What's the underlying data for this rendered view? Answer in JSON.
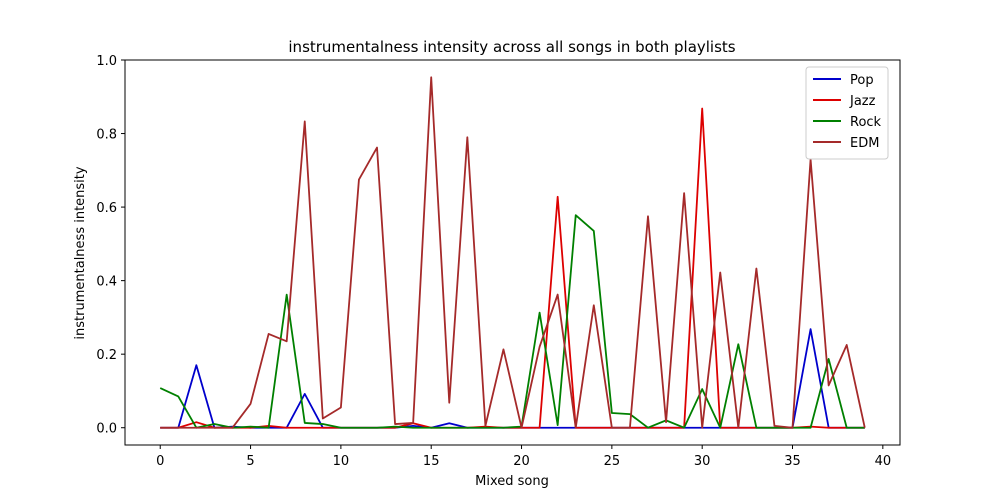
{
  "chart_data": {
    "type": "line",
    "title": "instrumentalness intensity across all songs in both playlists",
    "xlabel": "Mixed song",
    "ylabel": "instrumentalness intensity",
    "xlim": [
      -1.95,
      40.95
    ],
    "ylim": [
      -0.047,
      1.0
    ],
    "xticks": [
      0,
      5,
      10,
      15,
      20,
      25,
      30,
      35,
      40
    ],
    "xtick_labels": [
      "0",
      "5",
      "10",
      "15",
      "20",
      "25",
      "30",
      "35",
      "40"
    ],
    "yticks": [
      0.0,
      0.2,
      0.4,
      0.6,
      0.8,
      1.0
    ],
    "ytick_labels": [
      "0.0",
      "0.2",
      "0.4",
      "0.6",
      "0.8",
      "1.0"
    ],
    "grid": false,
    "legend_position": "top-right",
    "x": [
      0,
      1,
      2,
      3,
      4,
      5,
      6,
      7,
      8,
      9,
      10,
      11,
      12,
      13,
      14,
      15,
      16,
      17,
      18,
      19,
      20,
      21,
      22,
      23,
      24,
      25,
      26,
      27,
      28,
      29,
      30,
      31,
      32,
      33,
      34,
      35,
      36,
      37,
      38,
      39
    ],
    "series": [
      {
        "name": "Pop",
        "color": "#0000cc",
        "values": [
          0.0,
          0.0,
          0.17,
          0.0,
          0.003,
          0.0,
          0.0,
          0.0,
          0.092,
          0.0,
          0.0,
          0.0,
          0.0,
          0.0,
          0.005,
          0.0,
          0.012,
          0.0,
          0.0,
          0.0,
          0.0,
          0.0,
          0.0,
          0.0,
          0.0,
          0.0,
          0.0,
          0.0,
          0.0,
          0.0,
          0.0,
          0.0,
          0.0,
          0.0,
          0.0,
          0.0,
          0.268,
          0.0,
          0.0,
          0.0
        ]
      },
      {
        "name": "Jazz",
        "color": "#dd0000",
        "values": [
          0.0,
          0.0,
          0.015,
          0.0,
          0.0,
          0.0,
          0.005,
          0.0,
          0.0,
          0.0,
          0.0,
          0.0,
          0.0,
          0.0,
          0.012,
          0.0,
          0.0,
          0.0,
          0.003,
          0.0,
          0.0,
          0.0,
          0.628,
          0.0,
          0.0,
          0.0,
          0.0,
          0.0,
          0.0,
          0.0,
          0.868,
          0.0,
          0.0,
          0.0,
          0.0,
          0.0,
          0.003,
          0.0,
          0.0,
          0.0
        ]
      },
      {
        "name": "Rock",
        "color": "#008000",
        "values": [
          0.108,
          0.085,
          0.0,
          0.01,
          0.0,
          0.003,
          0.0,
          0.362,
          0.013,
          0.01,
          0.0,
          0.0,
          0.0,
          0.003,
          0.0,
          0.0,
          0.0,
          0.0,
          0.0,
          0.0,
          0.003,
          0.313,
          0.007,
          0.578,
          0.535,
          0.04,
          0.037,
          0.0,
          0.02,
          0.0,
          0.105,
          0.0,
          0.227,
          0.0,
          0.0,
          0.0,
          0.0,
          0.187,
          0.0,
          0.0
        ]
      },
      {
        "name": "EDM",
        "color": "#a52a2a",
        "values": [
          0.0,
          0.0,
          0.0,
          0.0,
          0.0,
          0.065,
          0.255,
          0.235,
          0.833,
          0.025,
          0.055,
          0.675,
          0.762,
          0.01,
          0.013,
          0.953,
          0.068,
          0.79,
          0.005,
          0.213,
          0.0,
          0.22,
          0.362,
          0.0,
          0.333,
          0.0,
          0.0,
          0.575,
          0.015,
          0.638,
          0.0,
          0.422,
          0.0,
          0.433,
          0.005,
          0.0,
          0.73,
          0.115,
          0.225,
          0.0
        ]
      }
    ]
  }
}
